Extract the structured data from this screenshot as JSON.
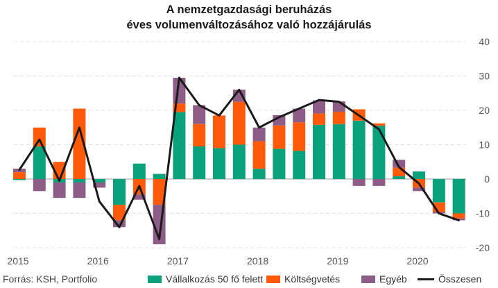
{
  "chart_data": {
    "type": "bar",
    "stacked": true,
    "title_lines": [
      "A nemzetgazdasági beruházás",
      "éves volumenváltozásához való hozzájárulás"
    ],
    "xlabel": "",
    "ylabel": "",
    "ylim": [
      -20,
      40
    ],
    "yticks": [
      -20,
      -10,
      0,
      10,
      20,
      30,
      40
    ],
    "y_axis_position": "right",
    "year_labels": [
      "2015",
      "2016",
      "2017",
      "2018",
      "2019",
      "2020"
    ],
    "categories": [
      "2015 Q1",
      "2015 Q2",
      "2015 Q3",
      "2015 Q4",
      "2016 Q1",
      "2016 Q2",
      "2016 Q3",
      "2016 Q4",
      "2017 Q1",
      "2017 Q2",
      "2017 Q3",
      "2017 Q4",
      "2018 Q1",
      "2018 Q2",
      "2018 Q3",
      "2018 Q4",
      "2019 Q1",
      "2019 Q2",
      "2019 Q3",
      "2019 Q4",
      "2020 Q1",
      "2020 Q2",
      "2020 Q3"
    ],
    "series": [
      {
        "name": "Vállalkozás 50 fő felett",
        "color": "#0aa27c",
        "values": [
          -0.3,
          9.5,
          -1,
          -1,
          -1,
          -7.5,
          4.5,
          1.5,
          19.5,
          9.5,
          9,
          10,
          3,
          8.8,
          8.2,
          15.8,
          16,
          17,
          15.5,
          0.8,
          2.2,
          -6.8,
          -10
        ]
      },
      {
        "name": "Költségvetés",
        "color": "#ff5a09",
        "values": [
          2,
          5.5,
          5,
          20.5,
          0,
          -4.5,
          -4.5,
          -7.5,
          2.5,
          6.5,
          9.5,
          12.5,
          8,
          6.8,
          8.3,
          3.3,
          3.6,
          3.3,
          0.7,
          2.5,
          -2.5,
          -2.8,
          -1.5
        ]
      },
      {
        "name": "Egyéb",
        "color": "#8e5d87",
        "values": [
          1,
          -3.5,
          -4.5,
          -4.5,
          -1.5,
          -2,
          -1.5,
          -11.5,
          7.5,
          5.5,
          0,
          3.5,
          4,
          3,
          4,
          3.8,
          3,
          -2,
          -2,
          2.3,
          -1,
          -0.4,
          -0.5
        ]
      }
    ],
    "line": {
      "name": "Összesen",
      "color": "#1a1a1a",
      "values": [
        2.7,
        11.5,
        -0.5,
        15,
        -6.5,
        -14,
        -2,
        -17.5,
        29.5,
        21.5,
        18.5,
        26,
        15,
        18,
        20.5,
        23,
        22.5,
        18.5,
        14.5,
        3.5,
        -1.3,
        -10,
        -12
      ]
    },
    "grid": true,
    "legend_position": "bottom"
  },
  "source": "Forrás: KSH, Portfolio",
  "legend": [
    {
      "label": "Vállalkozás 50 fő felett",
      "color": "#0aa27c",
      "kind": "box"
    },
    {
      "label": "Költségvetés",
      "color": "#ff5a09",
      "kind": "box"
    },
    {
      "label": "Egyéb",
      "color": "#8e5d87",
      "kind": "box"
    },
    {
      "label": "Összesen",
      "color": "#1a1a1a",
      "kind": "line"
    }
  ]
}
